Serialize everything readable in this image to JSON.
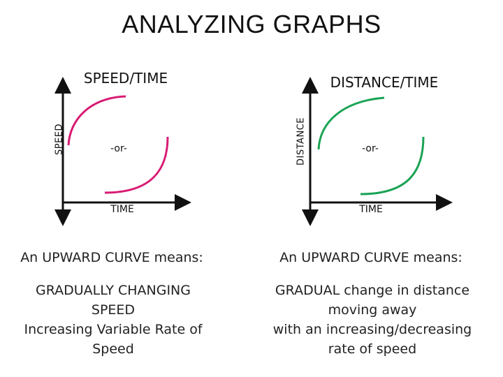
{
  "title": "ANALYZING GRAPHS",
  "colors": {
    "speed_curve": "#d81b73",
    "distance_curve": "#1aa354",
    "axis": "#111111"
  },
  "graphs": [
    {
      "title": "SPEED/TIME",
      "y_axis_label": "SPEED",
      "x_axis_label": "TIME",
      "or_text": "-or-",
      "caption": "An UPWARD CURVE means:",
      "description": [
        "GRADUALLY CHANGING",
        "SPEED",
        "Increasing Variable Rate of",
        "Speed"
      ]
    },
    {
      "title": "DISTANCE/TIME",
      "y_axis_label": "DISTANCE",
      "x_axis_label": "TIME",
      "or_text": "-or-",
      "caption": "An UPWARD CURVE means:",
      "description": [
        "GRADUAL change in distance",
        "moving away",
        "with an increasing/decreasing",
        "rate of speed"
      ]
    }
  ]
}
